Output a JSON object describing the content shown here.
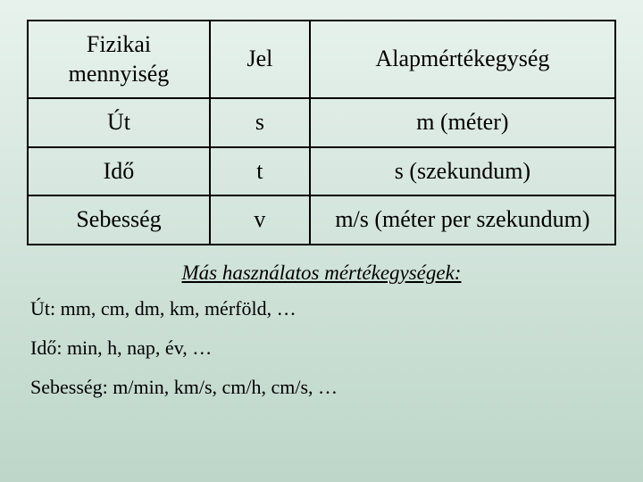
{
  "table": {
    "type": "table",
    "border_color": "#000000",
    "text_color": "#000000",
    "font_family": "Times New Roman",
    "header_fontsize": 26,
    "cell_fontsize": 26,
    "column_widths_pct": [
      31,
      17,
      52
    ],
    "columns": [
      "Fizikai mennyiség",
      "Jel",
      "Alapmértékegység"
    ],
    "rows": [
      [
        "Út",
        "s",
        "m (méter)"
      ],
      [
        "Idő",
        "t",
        "s (szekundum)"
      ],
      [
        "Sebesség",
        "v",
        "m/s (méter per szekundum)"
      ]
    ]
  },
  "subtitle": "Más használatos mértékegységek:",
  "lines": {
    "ut": "Út: mm, cm, dm, km, mérföld, …",
    "ido": "Idő: min, h, nap, év, …",
    "seb": "Sebesség: m/min, km/s, cm/h, cm/s, …"
  },
  "styling": {
    "background_gradient": [
      "#e8f2ed",
      "#d2e4db",
      "#bdd6c9"
    ],
    "subtitle_fontsize": 23,
    "line_fontsize": 22
  }
}
